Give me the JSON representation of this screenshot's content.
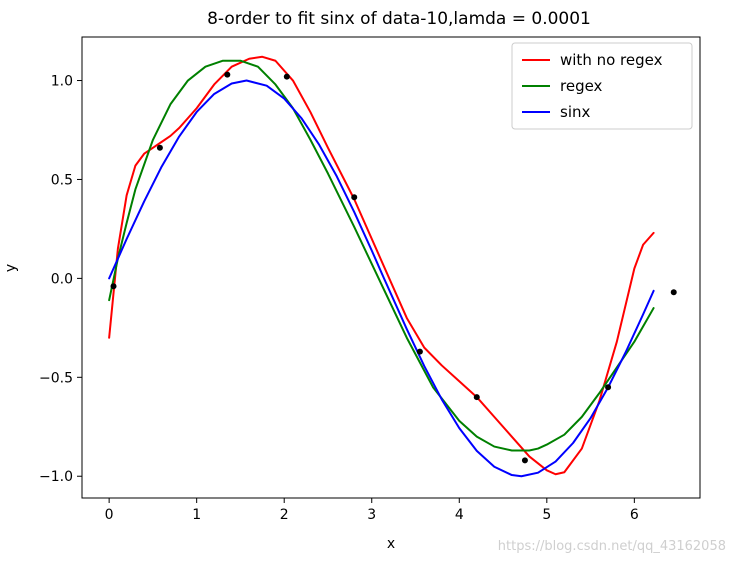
{
  "chart_data": {
    "type": "line",
    "title": "8-order to fit sinx of data-10,lamda = 0.0001",
    "xlabel": "x",
    "ylabel": "y",
    "xlim": [
      -0.31,
      6.75
    ],
    "ylim": [
      -1.11,
      1.22
    ],
    "xticks": [
      0,
      1,
      2,
      3,
      4,
      5,
      6
    ],
    "yticks": [
      -1.0,
      -0.5,
      0.0,
      0.5,
      1.0
    ],
    "ytick_labels": [
      "−1.0",
      "−0.5",
      "0.0",
      "0.5",
      "1.0"
    ],
    "xtick_labels": [
      "0",
      "1",
      "2",
      "3",
      "4",
      "5",
      "6"
    ],
    "legend_position": "top-right",
    "grid": false,
    "series": [
      {
        "name": "with no regex",
        "color": "#ff0000",
        "x": [
          0.0,
          0.1,
          0.2,
          0.3,
          0.4,
          0.5,
          0.6,
          0.7,
          0.8,
          1.0,
          1.2,
          1.4,
          1.6,
          1.75,
          1.9,
          2.1,
          2.3,
          2.5,
          2.8,
          3.1,
          3.4,
          3.6,
          3.8,
          4.0,
          4.2,
          4.4,
          4.6,
          4.8,
          5.0,
          5.1,
          5.2,
          5.4,
          5.6,
          5.8,
          6.0,
          6.1,
          6.22
        ],
        "y": [
          -0.3,
          0.15,
          0.42,
          0.57,
          0.63,
          0.66,
          0.69,
          0.72,
          0.76,
          0.86,
          0.98,
          1.07,
          1.11,
          1.12,
          1.1,
          1.0,
          0.84,
          0.66,
          0.4,
          0.1,
          -0.2,
          -0.35,
          -0.44,
          -0.52,
          -0.6,
          -0.7,
          -0.8,
          -0.9,
          -0.97,
          -0.99,
          -0.98,
          -0.86,
          -0.62,
          -0.32,
          0.05,
          0.17,
          0.23
        ]
      },
      {
        "name": "regex",
        "color": "#008000",
        "x": [
          0.0,
          0.1,
          0.2,
          0.3,
          0.5,
          0.7,
          0.9,
          1.1,
          1.3,
          1.5,
          1.7,
          1.9,
          2.1,
          2.3,
          2.5,
          2.8,
          3.1,
          3.4,
          3.7,
          4.0,
          4.2,
          4.4,
          4.6,
          4.8,
          4.9,
          5.0,
          5.2,
          5.4,
          5.6,
          5.8,
          6.0,
          6.22
        ],
        "y": [
          -0.11,
          0.1,
          0.28,
          0.45,
          0.7,
          0.88,
          1.0,
          1.07,
          1.1,
          1.1,
          1.07,
          0.98,
          0.86,
          0.7,
          0.53,
          0.26,
          -0.02,
          -0.3,
          -0.55,
          -0.72,
          -0.8,
          -0.85,
          -0.87,
          -0.87,
          -0.86,
          -0.84,
          -0.79,
          -0.7,
          -0.58,
          -0.45,
          -0.32,
          -0.15
        ]
      },
      {
        "name": "sinx",
        "color": "#0000ff",
        "x": [
          0.0,
          0.2,
          0.4,
          0.6,
          0.8,
          1.0,
          1.2,
          1.4,
          1.57,
          1.8,
          2.0,
          2.2,
          2.4,
          2.6,
          2.8,
          3.0,
          3.14,
          3.4,
          3.6,
          3.8,
          4.0,
          4.2,
          4.4,
          4.6,
          4.71,
          4.9,
          5.1,
          5.3,
          5.5,
          5.7,
          5.9,
          6.1,
          6.22
        ],
        "y": [
          0.0,
          0.199,
          0.389,
          0.565,
          0.717,
          0.841,
          0.932,
          0.985,
          1.0,
          0.974,
          0.909,
          0.808,
          0.675,
          0.516,
          0.335,
          0.141,
          0.0,
          -0.256,
          -0.443,
          -0.612,
          -0.757,
          -0.872,
          -0.952,
          -0.994,
          -1.0,
          -0.982,
          -0.926,
          -0.832,
          -0.706,
          -0.551,
          -0.374,
          -0.182,
          -0.063
        ]
      }
    ],
    "points": {
      "color": "#000000",
      "x": [
        0.05,
        0.58,
        1.35,
        2.03,
        2.8,
        3.55,
        4.2,
        4.75,
        5.7,
        6.45
      ],
      "y": [
        -0.04,
        0.66,
        1.03,
        1.02,
        0.41,
        -0.37,
        -0.6,
        -0.92,
        -0.55,
        -0.07
      ]
    }
  },
  "watermark": "https://blog.csdn.net/qq_43162058"
}
